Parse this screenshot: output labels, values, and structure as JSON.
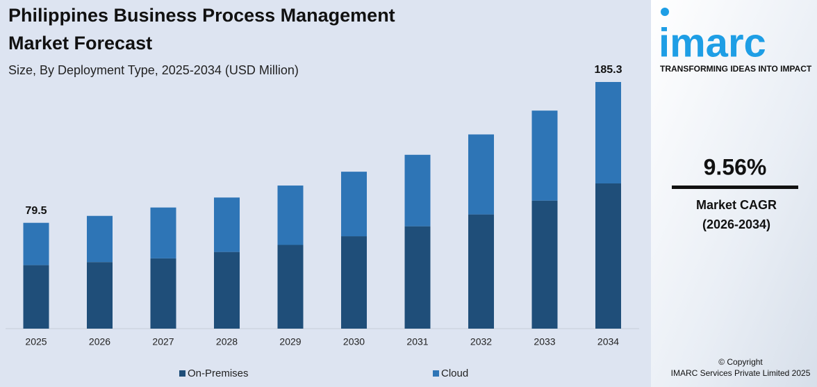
{
  "chart_data": {
    "type": "stacked_bar",
    "title": "Philippines Business Process Management Market Forecast",
    "subtitle": "Size, By Deployment Type, 2025-2034 (USD Million)",
    "categories": [
      "2025",
      "2026",
      "2027",
      "2028",
      "2029",
      "2030",
      "2031",
      "2032",
      "2033",
      "2034"
    ],
    "series": [
      {
        "name": "On-Premises",
        "color": "#1f4e79",
        "values": [
          47.7,
          50.0,
          52.8,
          57.6,
          62.9,
          69.4,
          76.9,
          85.8,
          96.2,
          109.1
        ]
      },
      {
        "name": "Cloud",
        "color": "#2e75b6",
        "values": [
          31.8,
          34.7,
          38.2,
          40.9,
          44.6,
          48.5,
          53.7,
          60.1,
          67.6,
          76.2
        ]
      }
    ],
    "total_labels": [
      {
        "category": "2025",
        "value": 79.5
      },
      {
        "category": "2034",
        "value": 185.3
      }
    ],
    "legend": "bottom"
  },
  "sidebar": {
    "logo": "imarc",
    "tagline": "TRANSFORMING IDEAS INTO IMPACT",
    "cagr": "9.56%",
    "cagr_label": "Market CAGR",
    "cagr_period": "(2026-2034)",
    "copyright": "© Copyright",
    "company": "IMARC Services Private Limited 2025"
  }
}
